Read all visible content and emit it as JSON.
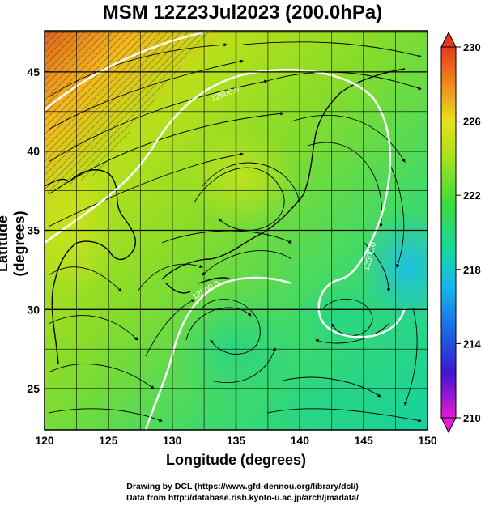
{
  "title": "MSM 12Z23Jul2023 (200.0hPa)",
  "chart_data": {
    "type": "heatmap",
    "xlabel": "Longitude (degrees)",
    "ylabel": "Latitude  (degrees)",
    "xlim": [
      120,
      150
    ],
    "ylim": [
      22.4,
      47.6
    ],
    "x_ticks": [
      "120",
      "125",
      "130",
      "135",
      "140",
      "145",
      "150"
    ],
    "y_ticks": [
      "25",
      "30",
      "35",
      "40",
      "45"
    ],
    "colorbar": {
      "ticks": [
        "230",
        "226",
        "222",
        "218",
        "214",
        "210"
      ],
      "range": [
        210,
        230
      ]
    },
    "contour_labels": [
      "12500.0",
      "12500.0",
      "12500.0"
    ],
    "grid": true
  },
  "credits": {
    "line1": "Drawing by DCL (https://www.gfd-dennou.org/library/dcl/)",
    "line2": "Data from http://database.rish.kyoto-u.ac.jp/arch/jmadata/"
  }
}
